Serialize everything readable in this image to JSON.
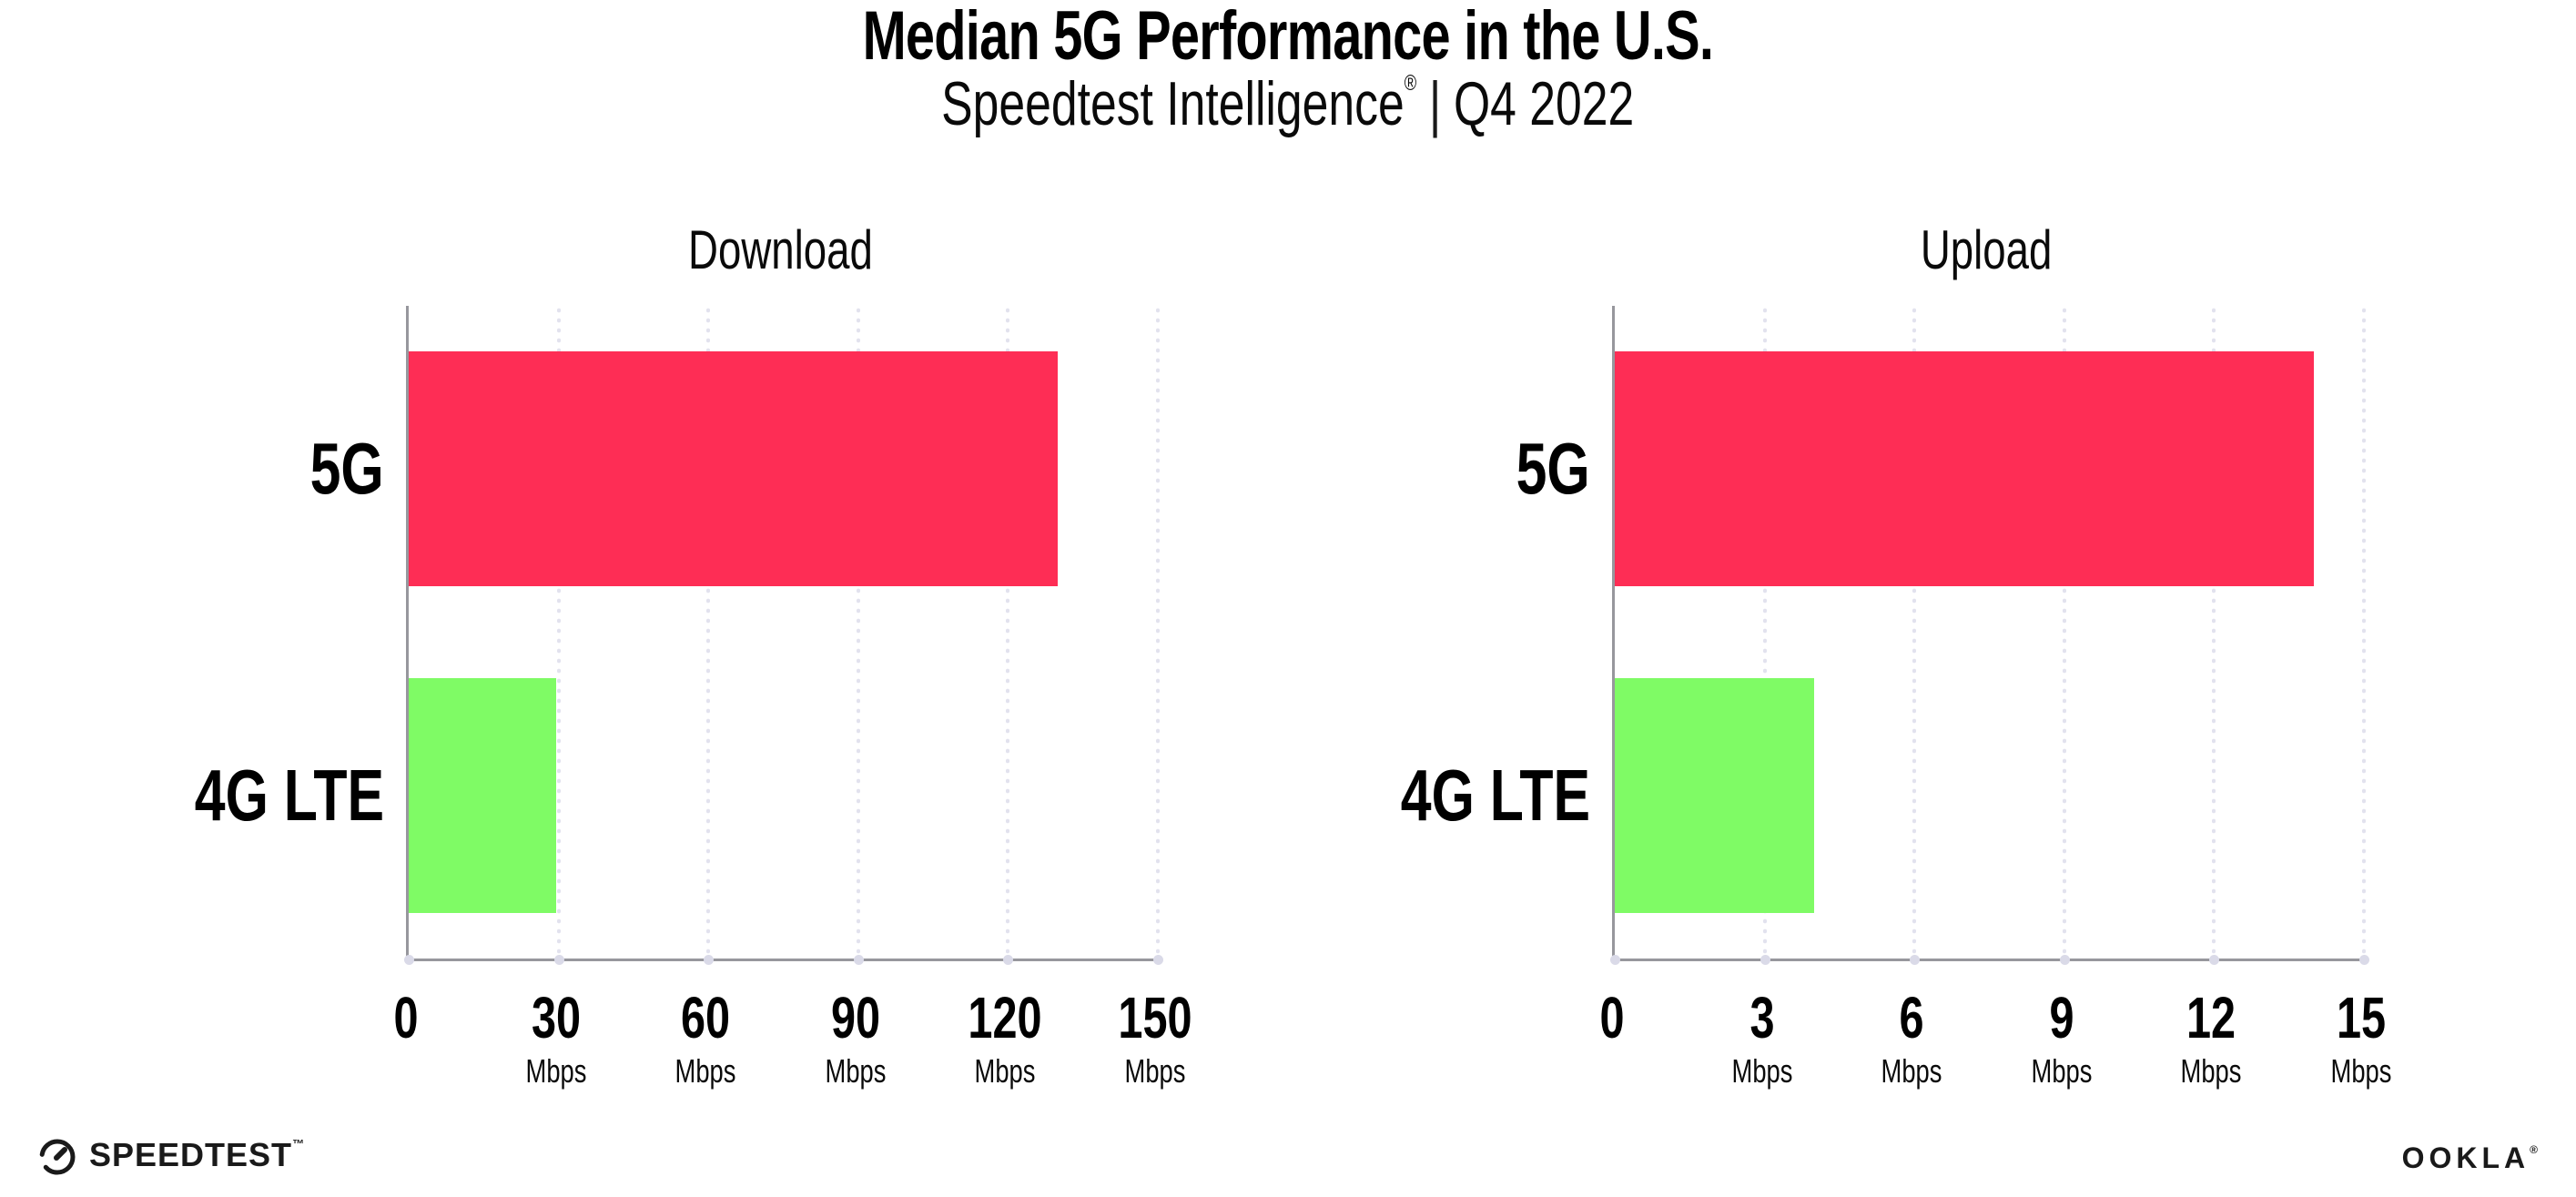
{
  "header": {
    "title": "Median 5G Performance in the U.S.",
    "subtitle_brand": "Speedtest Intelligence",
    "subtitle_reg": "®",
    "subtitle_separator": "|",
    "subtitle_period": "Q4 2022"
  },
  "chart_data": [
    {
      "type": "bar",
      "orientation": "horizontal",
      "title": "Download",
      "categories": [
        "5G",
        "4G LTE"
      ],
      "values": [
        130,
        29.5
      ],
      "unit": "Mbps",
      "xlim": [
        0,
        150
      ],
      "xticks": [
        0,
        30,
        60,
        90,
        120,
        150
      ],
      "bar_colors": [
        "#FE2D55",
        "#7FFB65"
      ],
      "grid": "vertical-dotted",
      "legend": "none"
    },
    {
      "type": "bar",
      "orientation": "horizontal",
      "title": "Upload",
      "categories": [
        "5G",
        "4G LTE"
      ],
      "values": [
        14,
        4
      ],
      "unit": "Mbps",
      "xlim": [
        0,
        15
      ],
      "xticks": [
        0,
        3,
        6,
        9,
        12,
        15
      ],
      "bar_colors": [
        "#FE2D55",
        "#7FFB65"
      ],
      "grid": "vertical-dotted",
      "legend": "none"
    }
  ],
  "footer": {
    "speedtest_wordmark": "SPEEDTEST",
    "speedtest_tm": "™",
    "ookla_wordmark": "OOKLA",
    "ookla_reg": "®"
  },
  "colors": {
    "bar_5g": "#FE2D55",
    "bar_4g_lte": "#7FFB65",
    "axis": "#97979D",
    "gridline": "#E2E2EE",
    "text": "#111111"
  }
}
